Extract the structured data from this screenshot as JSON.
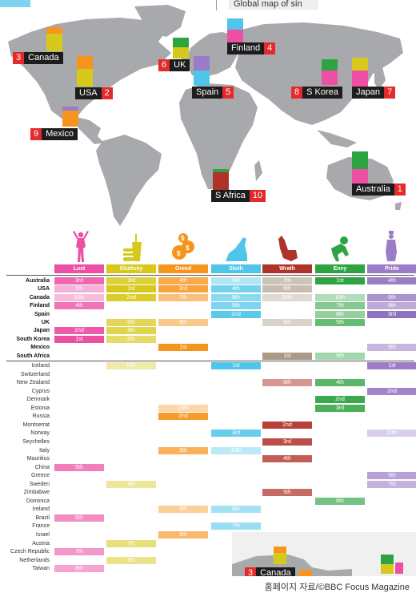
{
  "map_title": "Global map of sin",
  "credit": "홈페이지 자료/©BBC Focus Magazine",
  "colors": {
    "Lust": "#ec4fa4",
    "Gluttony": "#d7c91b",
    "Greed": "#f7941d",
    "Sloth": "#4fc6e9",
    "Wrath": "#b0332a",
    "Envy": "#2ea341",
    "Pride": "#9b7cc7",
    "Pride_dark": "#7d5cb3",
    "Wrath_beige": "#a99a86",
    "rank_red": "#e42b2b",
    "label_dark": "#1d1d1d"
  },
  "map_countries": [
    {
      "name": "Canada",
      "rank": "3"
    },
    {
      "name": "USA",
      "rank": "2"
    },
    {
      "name": "Mexico",
      "rank": "9"
    },
    {
      "name": "UK",
      "rank": "6"
    },
    {
      "name": "Finland",
      "rank": "4"
    },
    {
      "name": "Spain",
      "rank": "5"
    },
    {
      "name": "S Korea",
      "rank": "8"
    },
    {
      "name": "Japan",
      "rank": "7"
    },
    {
      "name": "S Africa",
      "rank": "10"
    },
    {
      "name": "Australia",
      "rank": "1"
    }
  ],
  "inset_label": {
    "name": "Canada",
    "rank": "3"
  },
  "chart_data": {
    "type": "table",
    "columns": [
      "Lust",
      "Gluttony",
      "Greed",
      "Sloth",
      "Wrath",
      "Envy",
      "Pride"
    ],
    "top_rows": [
      {
        "country": "Australia",
        "cells": [
          "3rd",
          "3rd",
          "4th",
          "9th",
          "7th",
          "1st",
          "4th"
        ]
      },
      {
        "country": "USA",
        "cells": [
          "9th",
          "1st",
          "3rd",
          "4th",
          "6th",
          "",
          ""
        ]
      },
      {
        "country": "Canada",
        "cells": [
          "10th",
          "2nd",
          "7th",
          "6th",
          "10th",
          "10th",
          "6th"
        ]
      },
      {
        "country": "Finland",
        "cells": [
          "4th",
          "",
          "",
          "5th",
          "",
          "7th",
          "8th"
        ]
      },
      {
        "country": "Spain",
        "cells": [
          "",
          "",
          "",
          "2nd",
          "",
          "8th",
          "3rd"
        ]
      },
      {
        "country": "UK",
        "cells": [
          "",
          "5th",
          "8th",
          "",
          "9th",
          "5th",
          ""
        ]
      },
      {
        "country": "Japan",
        "cells": [
          "2nd",
          "4th",
          "",
          "",
          "",
          "",
          ""
        ]
      },
      {
        "country": "South Korea",
        "cells": [
          "1st",
          "6th",
          "",
          "",
          "",
          "",
          ""
        ]
      },
      {
        "country": "Mexico",
        "cells": [
          "",
          "",
          "1st",
          "",
          "",
          "",
          "9th"
        ]
      },
      {
        "country": "South Africa",
        "cells": [
          "",
          "",
          "",
          "",
          "1st",
          "9th",
          ""
        ]
      }
    ],
    "bottom_rows": [
      {
        "country": "Iceland",
        "cells": [
          "",
          "10th",
          "",
          "1st",
          "",
          "",
          "1st"
        ]
      },
      {
        "country": "Switzerland",
        "cells": [
          "",
          "",
          "",
          "",
          "",
          "",
          ""
        ]
      },
      {
        "country": "New Zealand",
        "cells": [
          "",
          "",
          "",
          "",
          "8th",
          "4th",
          ""
        ]
      },
      {
        "country": "Cyprus",
        "cells": [
          "",
          "",
          "",
          "",
          "",
          "",
          "2nd"
        ]
      },
      {
        "country": "Denmark",
        "cells": [
          "",
          "",
          "",
          "",
          "",
          "2nd",
          ""
        ]
      },
      {
        "country": "Estonia",
        "cells": [
          "",
          "",
          "10th",
          "",
          "",
          "3rd",
          ""
        ]
      },
      {
        "country": "Russia",
        "cells": [
          "",
          "",
          "2nd",
          "",
          "",
          "",
          ""
        ]
      },
      {
        "country": "Montserrat",
        "cells": [
          "",
          "",
          "",
          "",
          "2nd",
          "",
          ""
        ]
      },
      {
        "country": "Norway",
        "cells": [
          "",
          "",
          "",
          "3rd",
          "",
          "",
          "10th"
        ]
      },
      {
        "country": "Seychelles",
        "cells": [
          "",
          "",
          "",
          "",
          "3rd",
          "",
          ""
        ]
      },
      {
        "country": "Italy",
        "cells": [
          "",
          "",
          "5th",
          "10th",
          "",
          "",
          ""
        ]
      },
      {
        "country": "Mauritius",
        "cells": [
          "",
          "",
          "",
          "",
          "4th",
          "",
          ""
        ]
      },
      {
        "country": "China",
        "cells": [
          "5th",
          "",
          "",
          "",
          "",
          "",
          ""
        ]
      },
      {
        "country": "Greece",
        "cells": [
          "",
          "",
          "",
          "",
          "",
          "",
          "5th"
        ]
      },
      {
        "country": "Sweden",
        "cells": [
          "",
          "9th",
          "",
          "",
          "",
          "",
          "7th"
        ]
      },
      {
        "country": "Zimbabwe",
        "cells": [
          "",
          "",
          "",
          "",
          "5th",
          "",
          ""
        ]
      },
      {
        "country": "Dominica",
        "cells": [
          "",
          "",
          "",
          "",
          "",
          "6th",
          ""
        ]
      },
      {
        "country": "Ireland",
        "cells": [
          "",
          "",
          "9th",
          "8th",
          "",
          "",
          ""
        ]
      },
      {
        "country": "Brazil",
        "cells": [
          "6th",
          "",
          "",
          "",
          "",
          "",
          ""
        ]
      },
      {
        "country": "France",
        "cells": [
          "",
          "",
          "",
          "7th",
          "",
          "",
          ""
        ]
      },
      {
        "country": "Israel",
        "cells": [
          "",
          "",
          "6th",
          "",
          "",
          "",
          ""
        ]
      },
      {
        "country": "Austria",
        "cells": [
          "",
          "7th",
          "",
          "",
          "",
          "",
          ""
        ]
      },
      {
        "country": "Czech Republic",
        "cells": [
          "7th",
          "",
          "",
          "",
          "",
          "",
          ""
        ]
      },
      {
        "country": "Netherlands",
        "cells": [
          "",
          "8th",
          "",
          "",
          "",
          "",
          ""
        ]
      },
      {
        "country": "Taiwan",
        "cells": [
          "8th",
          "",
          "",
          "",
          "",
          "",
          ""
        ]
      }
    ]
  }
}
